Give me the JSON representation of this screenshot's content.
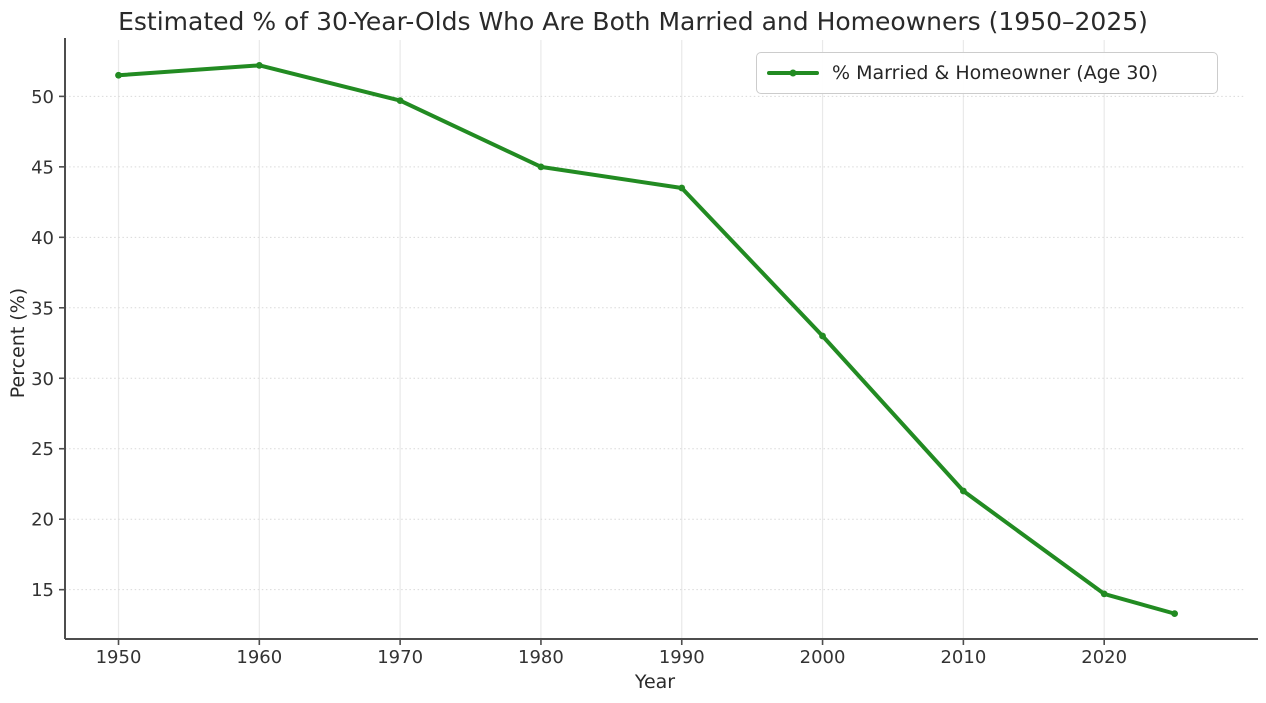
{
  "chart_data": {
    "type": "line",
    "title": "Estimated % of 30-Year-Olds Who Are Both Married and Homeowners (1950–2025)",
    "xlabel": "Year",
    "ylabel": "Percent (%)",
    "x": [
      1950,
      1960,
      1970,
      1980,
      1990,
      2000,
      2010,
      2020,
      2025
    ],
    "series": [
      {
        "name": "% Married & Homeowner (Age 30)",
        "values": [
          51.5,
          52.2,
          49.7,
          45.0,
          43.5,
          33.0,
          22.0,
          14.7,
          13.3
        ],
        "color": "#228B22",
        "marker": "circle"
      }
    ],
    "xticks": [
      1950,
      1960,
      1970,
      1980,
      1990,
      2000,
      2010,
      2020
    ],
    "yticks": [
      15,
      20,
      25,
      30,
      35,
      40,
      45,
      50
    ],
    "xlim": [
      1946.2,
      2030.0
    ],
    "ylim": [
      11.5,
      54.0
    ],
    "grid": true,
    "legend_position": "upper-right",
    "colors": {
      "line": "#228B22",
      "grid_vertical": "#e9e9e9",
      "grid_horizontal": "#d9d9d9",
      "spine": "#4d4d4d",
      "tick_text": "#333333",
      "title_text": "#2a2a2a"
    }
  }
}
